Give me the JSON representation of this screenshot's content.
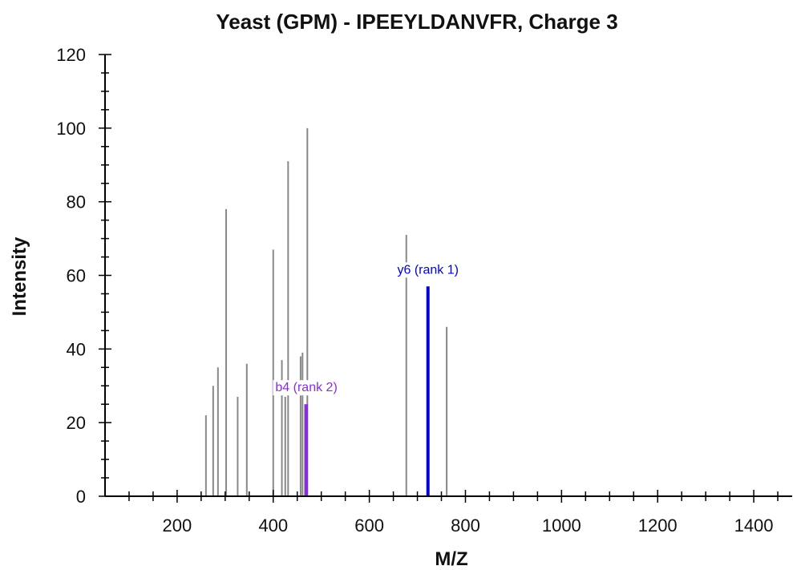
{
  "chart_data": {
    "type": "bar",
    "title": "Yeast (GPM) - IPEEYLDANVFR, Charge 3",
    "xlabel": "M/Z",
    "ylabel": "Intensity",
    "xlim": [
      50,
      1480
    ],
    "ylim": [
      0,
      120
    ],
    "x_ticks_major": [
      200,
      400,
      600,
      800,
      1000,
      1200,
      1400
    ],
    "y_ticks_major": [
      0,
      20,
      40,
      60,
      80,
      100,
      120
    ],
    "grid": false,
    "colors": {
      "peak": "#888888",
      "y_ion": "#0000dd",
      "b_ion": "#8a2be2",
      "axis": "#000000"
    },
    "peaks": [
      {
        "x": 260,
        "y": 22
      },
      {
        "x": 275,
        "y": 30
      },
      {
        "x": 285,
        "y": 35
      },
      {
        "x": 302,
        "y": 78
      },
      {
        "x": 326,
        "y": 27
      },
      {
        "x": 345,
        "y": 36
      },
      {
        "x": 400,
        "y": 67
      },
      {
        "x": 418,
        "y": 37
      },
      {
        "x": 425,
        "y": 27
      },
      {
        "x": 431,
        "y": 91
      },
      {
        "x": 457,
        "y": 38
      },
      {
        "x": 461,
        "y": 39
      },
      {
        "x": 466,
        "y": 25
      },
      {
        "x": 471,
        "y": 100
      },
      {
        "x": 677,
        "y": 71
      },
      {
        "x": 761,
        "y": 46
      }
    ],
    "annotations": [
      {
        "x": 722,
        "y": 57,
        "label": "y6 (rank 1)",
        "color": "#0000dd"
      },
      {
        "x": 469,
        "y": 25,
        "label": "b4 (rank 2)",
        "color": "#8a2be2"
      }
    ]
  }
}
